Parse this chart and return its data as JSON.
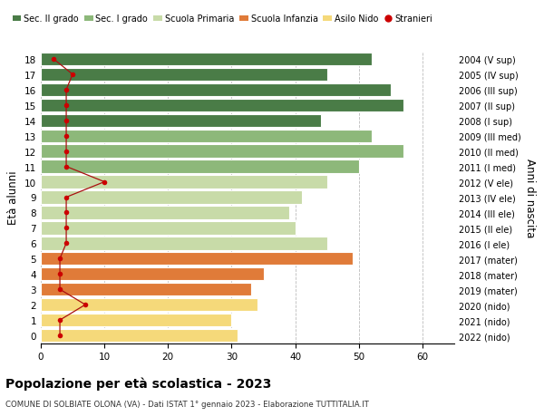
{
  "ages": [
    0,
    1,
    2,
    3,
    4,
    5,
    6,
    7,
    8,
    9,
    10,
    11,
    12,
    13,
    14,
    15,
    16,
    17,
    18
  ],
  "years": [
    "2022 (nido)",
    "2021 (nido)",
    "2020 (nido)",
    "2019 (mater)",
    "2018 (mater)",
    "2017 (mater)",
    "2016 (I ele)",
    "2015 (II ele)",
    "2014 (III ele)",
    "2013 (IV ele)",
    "2012 (V ele)",
    "2011 (I med)",
    "2010 (II med)",
    "2009 (III med)",
    "2008 (I sup)",
    "2007 (II sup)",
    "2006 (III sup)",
    "2005 (IV sup)",
    "2004 (V sup)"
  ],
  "bar_values": [
    31,
    30,
    34,
    33,
    35,
    49,
    45,
    40,
    39,
    41,
    45,
    50,
    57,
    52,
    44,
    57,
    55,
    45,
    52
  ],
  "bar_colors": [
    "#f5d97a",
    "#f5d97a",
    "#f5d97a",
    "#e07b39",
    "#e07b39",
    "#e07b39",
    "#c8dba8",
    "#c8dba8",
    "#c8dba8",
    "#c8dba8",
    "#c8dba8",
    "#8db87a",
    "#8db87a",
    "#8db87a",
    "#4a7c47",
    "#4a7c47",
    "#4a7c47",
    "#4a7c47",
    "#4a7c47"
  ],
  "stranieri": [
    3,
    3,
    7,
    3,
    3,
    3,
    4,
    4,
    4,
    4,
    10,
    4,
    4,
    4,
    4,
    4,
    4,
    5,
    2
  ],
  "xlim": [
    0,
    65
  ],
  "xticks": [
    0,
    10,
    20,
    30,
    40,
    50,
    60
  ],
  "ylabel": "Età alunni",
  "y2label": "Anni di nascita",
  "title": "Popolazione per età scolastica - 2023",
  "subtitle": "COMUNE DI SOLBIATE OLONA (VA) - Dati ISTAT 1° gennaio 2023 - Elaborazione TUTTITALIA.IT",
  "legend_labels": [
    "Sec. II grado",
    "Sec. I grado",
    "Scuola Primaria",
    "Scuola Infanzia",
    "Asilo Nido",
    "Stranieri"
  ],
  "legend_colors": [
    "#4a7c47",
    "#8db87a",
    "#c8dba8",
    "#e07b39",
    "#f5d97a",
    "#cc0000"
  ],
  "bar_height": 0.85,
  "background_color": "#ffffff",
  "grid_color": "#bbbbbb"
}
